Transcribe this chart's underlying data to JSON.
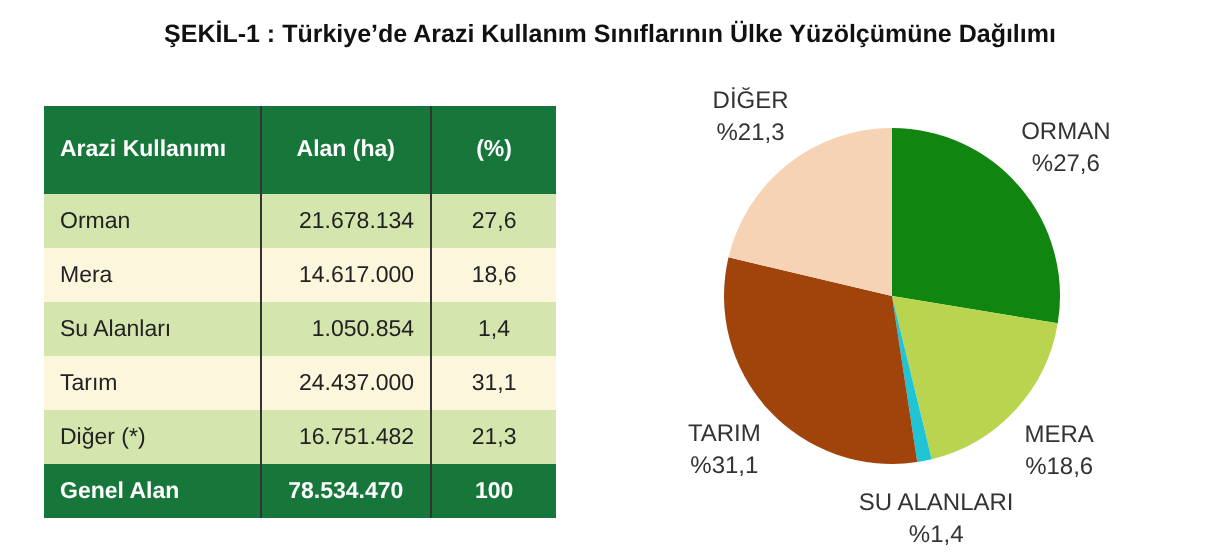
{
  "chart_data": [
    {
      "type": "other",
      "title": "ŞEKİL-1 : Türkiye’de Arazi Kullanım Sınıflarının Ülke Yüzölçümüne Dağılımı",
      "xlabel": "Arazi Kullanımı",
      "categories": [
        "Orman",
        "Mera",
        "Su Alanları",
        "Tarım",
        "Diğer (*)",
        "Genel Alan"
      ],
      "series": [
        {
          "name": "Alan (ha)",
          "colors": [
            "#d4e5ad",
            "#fbf6dc",
            "#d4e5ad",
            "#fbf6dc",
            "#d4e5ad",
            "#17773a"
          ],
          "values": [
            21678134,
            14617000,
            1050854,
            24437000,
            16751482,
            78534470
          ],
          "value_labels": [
            "21.678.134",
            "14.617.000",
            "1.050.854",
            "24.437.000",
            "16.751.482",
            "78.534.470"
          ]
        },
        {
          "name": "(%)",
          "colors": [
            "#d4e5ad",
            "#fbf6dc",
            "#d4e5ad",
            "#fbf6dc",
            "#d4e5ad",
            "#17773a"
          ],
          "values": [
            27.6,
            18.6,
            1.4,
            31.1,
            21.3,
            100
          ],
          "value_labels": [
            "27,6",
            "18,6",
            "1,4",
            "31,1",
            "21,3",
            "100"
          ]
        }
      ],
      "colors": [
        "#d4e5ad",
        "#fbf6dc",
        "#d4e5ad",
        "#fbf6dc",
        "#d4e5ad",
        "#17773a"
      ]
    },
    {
      "type": "pie",
      "categories": [
        "ORMAN",
        "MERA",
        "SU ALANLARI",
        "TARIM",
        "DİĞER"
      ],
      "values": [
        27.6,
        18.6,
        1.4,
        31.1,
        21.3
      ],
      "colors": [
        "#108510",
        "#b9d550",
        "#20c4d4",
        "#a0440c",
        "#f6d3b4"
      ],
      "value_labels": [
        "%27,6",
        "%18,6",
        "%1,4",
        "%31,1",
        "%21,3"
      ],
      "legend": false
    }
  ]
}
